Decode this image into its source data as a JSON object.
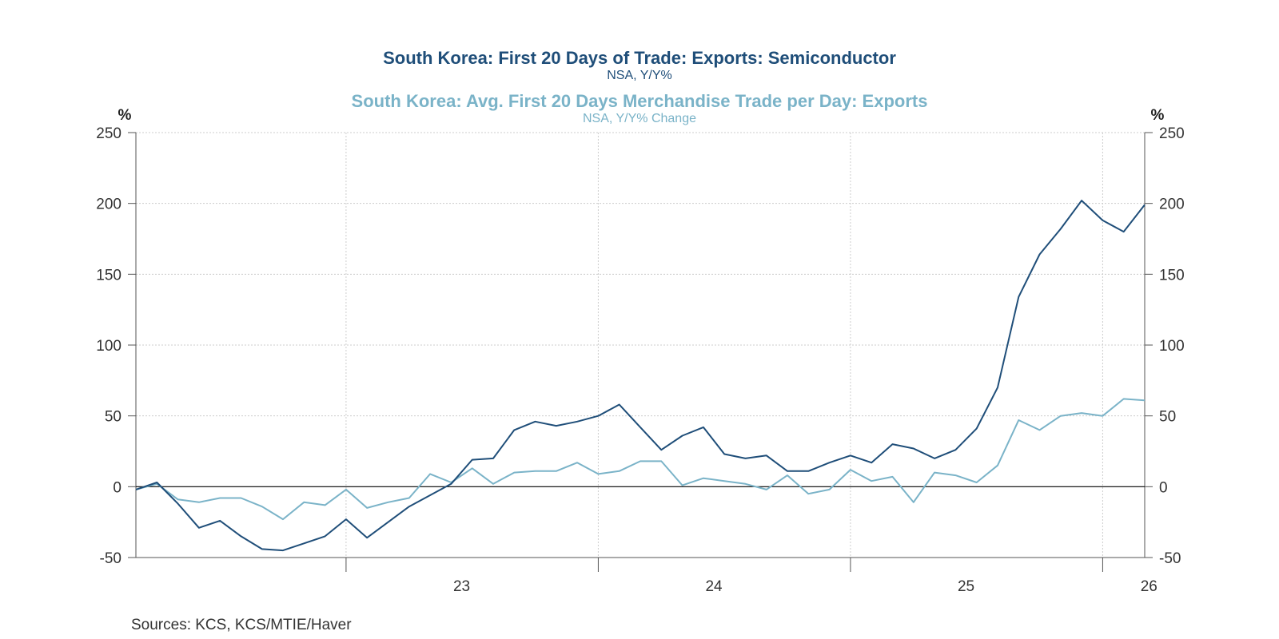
{
  "chart_data": {
    "type": "line",
    "title": "South Korea: First 20 Days of Trade: Exports: Semiconductor",
    "subtitle": "NSA, Y/Y%",
    "title2": "South Korea: Avg. First 20 Days Merchandise Trade per Day: Exports",
    "subtitle2": "NSA, Y/Y% Change",
    "ylabel_left": "%",
    "ylabel_right": "%",
    "ylim": [
      -50,
      250
    ],
    "yticks": [
      "250",
      "200",
      "150",
      "100",
      "50",
      "0",
      "-50"
    ],
    "xticks": [
      "23",
      "24",
      "25",
      "26"
    ],
    "grid": true,
    "x": [
      "2022-03",
      "2022-04",
      "2022-05",
      "2022-06",
      "2022-07",
      "2022-08",
      "2022-09",
      "2022-10",
      "2022-11",
      "2022-12",
      "2023-01",
      "2023-02",
      "2023-03",
      "2023-04",
      "2023-05",
      "2023-06",
      "2023-07",
      "2023-08",
      "2023-09",
      "2023-10",
      "2023-11",
      "2023-12",
      "2024-01",
      "2024-02",
      "2024-03",
      "2024-04",
      "2024-05",
      "2024-06",
      "2024-07",
      "2024-08",
      "2024-09",
      "2024-10",
      "2024-11",
      "2024-12",
      "2025-01",
      "2025-02",
      "2025-03",
      "2025-04",
      "2025-05",
      "2025-06",
      "2025-07",
      "2025-08",
      "2025-09",
      "2025-10",
      "2025-11",
      "2025-12",
      "2026-01",
      "2026-02",
      "2026-03"
    ],
    "series": [
      {
        "name": "South Korea: First 20 Days of Trade: Exports: Semiconductor",
        "color": "#1f4e79",
        "values": [
          -2,
          3,
          -12,
          -29,
          -24,
          -35,
          -44,
          -45,
          -40,
          -35,
          -23,
          -36,
          -25,
          -14,
          -6,
          2,
          19,
          20,
          40,
          46,
          43,
          46,
          50,
          58,
          42,
          26,
          36,
          42,
          23,
          20,
          22,
          11,
          11,
          17,
          22,
          17,
          30,
          27,
          20,
          26,
          41,
          70,
          134,
          164,
          182,
          202,
          188,
          180,
          199
        ]
      },
      {
        "name": "South Korea: Avg. First 20 Days Merchandise Trade per Day: Exports",
        "color": "#7ab3c8",
        "values": [
          -2,
          2,
          -9,
          -11,
          -8,
          -8,
          -14,
          -23,
          -11,
          -13,
          -2,
          -15,
          -11,
          -8,
          9,
          3,
          13,
          2,
          10,
          11,
          11,
          17,
          9,
          11,
          18,
          18,
          1,
          6,
          4,
          2,
          -2,
          8,
          -5,
          -2,
          12,
          4,
          7,
          -11,
          10,
          8,
          3,
          15,
          47,
          40,
          50,
          52,
          50,
          62,
          61
        ]
      }
    ],
    "source": "Sources:  KCS, KCS/MTIE/Haver"
  }
}
